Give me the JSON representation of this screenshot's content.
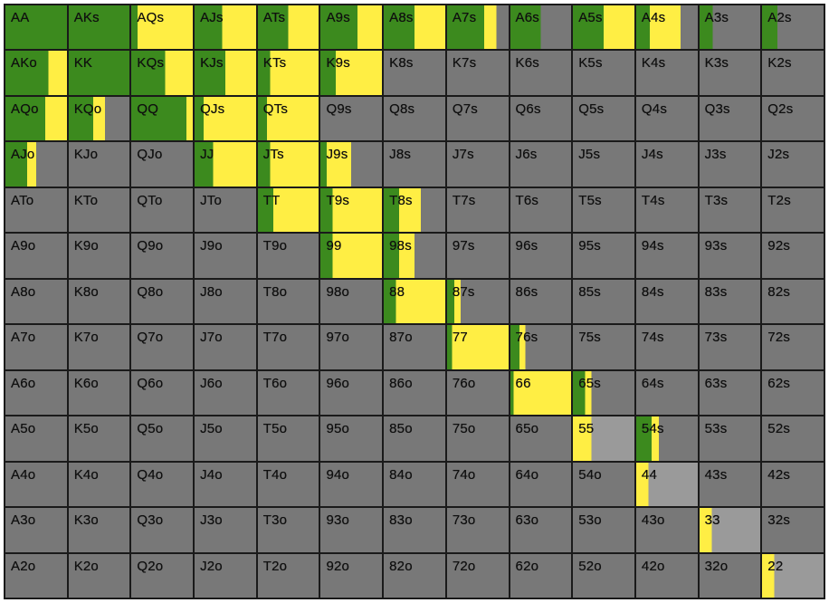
{
  "colors": {
    "green": "#3c8a1e",
    "yellow": "#ffee44",
    "fold": "#787878",
    "fold_light": "#9a9a9a",
    "grid_line": "#1a1a1a"
  },
  "chart_data": {
    "type": "heatmap",
    "ranks": [
      "A",
      "K",
      "Q",
      "J",
      "T",
      "9",
      "8",
      "7",
      "6",
      "5",
      "4",
      "3",
      "2"
    ],
    "value_units": "fraction of cell width",
    "legend": [],
    "rows": [
      {
        "labels": [
          "AA",
          "AKs",
          "AQs",
          "AJs",
          "ATs",
          "A9s",
          "A8s",
          "A7s",
          "A6s",
          "A5s",
          "A4s",
          "A3s",
          "A2s"
        ],
        "green": [
          1.0,
          1.0,
          0.1,
          0.45,
          0.5,
          0.6,
          0.5,
          0.6,
          0.5,
          0.5,
          0.22,
          0.22,
          0.25
        ],
        "yellow": [
          0.0,
          0.0,
          0.9,
          0.55,
          0.5,
          0.4,
          0.5,
          0.2,
          0.0,
          0.5,
          0.5,
          0.0,
          0.0
        ]
      },
      {
        "labels": [
          "AKo",
          "KK",
          "KQs",
          "KJs",
          "KTs",
          "K9s",
          "K8s",
          "K7s",
          "K6s",
          "K5s",
          "K4s",
          "K3s",
          "K2s"
        ],
        "green": [
          0.7,
          1.0,
          0.55,
          0.5,
          0.2,
          0.25,
          0.0,
          0.0,
          0.0,
          0.0,
          0.0,
          0.0,
          0.0
        ],
        "yellow": [
          0.3,
          0.0,
          0.45,
          0.5,
          0.8,
          0.75,
          0.0,
          0.0,
          0.0,
          0.0,
          0.0,
          0.0,
          0.0
        ]
      },
      {
        "labels": [
          "AQo",
          "KQo",
          "QQ",
          "QJs",
          "QTs",
          "Q9s",
          "Q8s",
          "Q7s",
          "Q6s",
          "Q5s",
          "Q4s",
          "Q3s",
          "Q2s"
        ],
        "green": [
          0.65,
          0.4,
          0.9,
          0.15,
          0.15,
          0.0,
          0.0,
          0.0,
          0.0,
          0.0,
          0.0,
          0.0,
          0.0
        ],
        "yellow": [
          0.35,
          0.2,
          0.1,
          0.85,
          0.85,
          0.0,
          0.0,
          0.0,
          0.0,
          0.0,
          0.0,
          0.0,
          0.0
        ]
      },
      {
        "labels": [
          "AJo",
          "KJo",
          "QJo",
          "JJ",
          "JTs",
          "J9s",
          "J8s",
          "J7s",
          "J6s",
          "J5s",
          "J4s",
          "J3s",
          "J2s"
        ],
        "green": [
          0.35,
          0.0,
          0.0,
          0.3,
          0.2,
          0.1,
          0.0,
          0.0,
          0.0,
          0.0,
          0.0,
          0.0,
          0.0
        ],
        "yellow": [
          0.15,
          0.0,
          0.0,
          0.7,
          0.8,
          0.4,
          0.0,
          0.0,
          0.0,
          0.0,
          0.0,
          0.0,
          0.0
        ]
      },
      {
        "labels": [
          "ATo",
          "KTo",
          "QTo",
          "JTo",
          "TT",
          "T9s",
          "T8s",
          "T7s",
          "T6s",
          "T5s",
          "T4s",
          "T3s",
          "T2s"
        ],
        "green": [
          0.0,
          0.0,
          0.0,
          0.0,
          0.25,
          0.2,
          0.25,
          0.0,
          0.0,
          0.0,
          0.0,
          0.0,
          0.0
        ],
        "yellow": [
          0.0,
          0.0,
          0.0,
          0.0,
          0.75,
          0.8,
          0.35,
          0.0,
          0.0,
          0.0,
          0.0,
          0.0,
          0.0
        ]
      },
      {
        "labels": [
          "A9o",
          "K9o",
          "Q9o",
          "J9o",
          "T9o",
          "99",
          "98s",
          "97s",
          "96s",
          "95s",
          "94s",
          "93s",
          "92s"
        ],
        "green": [
          0.0,
          0.0,
          0.0,
          0.0,
          0.0,
          0.2,
          0.25,
          0.0,
          0.0,
          0.0,
          0.0,
          0.0,
          0.0
        ],
        "yellow": [
          0.0,
          0.0,
          0.0,
          0.0,
          0.0,
          0.8,
          0.25,
          0.0,
          0.0,
          0.0,
          0.0,
          0.0,
          0.0
        ]
      },
      {
        "labels": [
          "A8o",
          "K8o",
          "Q8o",
          "J8o",
          "T8o",
          "98o",
          "88",
          "87s",
          "86s",
          "85s",
          "84s",
          "83s",
          "82s"
        ],
        "green": [
          0.0,
          0.0,
          0.0,
          0.0,
          0.0,
          0.0,
          0.2,
          0.12,
          0.0,
          0.0,
          0.0,
          0.0,
          0.0
        ],
        "yellow": [
          0.0,
          0.0,
          0.0,
          0.0,
          0.0,
          0.0,
          0.8,
          0.1,
          0.0,
          0.0,
          0.0,
          0.0,
          0.0
        ]
      },
      {
        "labels": [
          "A7o",
          "K7o",
          "Q7o",
          "J7o",
          "T7o",
          "97o",
          "87o",
          "77",
          "76s",
          "75s",
          "74s",
          "73s",
          "72s"
        ],
        "green": [
          0.0,
          0.0,
          0.0,
          0.0,
          0.0,
          0.0,
          0.0,
          0.08,
          0.15,
          0.0,
          0.0,
          0.0,
          0.0
        ],
        "yellow": [
          0.0,
          0.0,
          0.0,
          0.0,
          0.0,
          0.0,
          0.0,
          0.92,
          0.1,
          0.0,
          0.0,
          0.0,
          0.0
        ]
      },
      {
        "labels": [
          "A6o",
          "K6o",
          "Q6o",
          "J6o",
          "T6o",
          "96o",
          "86o",
          "76o",
          "66",
          "65s",
          "64s",
          "63s",
          "62s"
        ],
        "green": [
          0.0,
          0.0,
          0.0,
          0.0,
          0.0,
          0.0,
          0.0,
          0.0,
          0.05,
          0.2,
          0.0,
          0.0,
          0.0
        ],
        "yellow": [
          0.0,
          0.0,
          0.0,
          0.0,
          0.0,
          0.0,
          0.0,
          0.0,
          0.95,
          0.1,
          0.0,
          0.0,
          0.0
        ]
      },
      {
        "labels": [
          "A5o",
          "K5o",
          "Q5o",
          "J5o",
          "T5o",
          "95o",
          "85o",
          "75o",
          "65o",
          "55",
          "54s",
          "53s",
          "52s"
        ],
        "green": [
          0.0,
          0.0,
          0.0,
          0.0,
          0.0,
          0.0,
          0.0,
          0.0,
          0.0,
          0.0,
          0.25,
          0.0,
          0.0
        ],
        "yellow": [
          0.0,
          0.0,
          0.0,
          0.0,
          0.0,
          0.0,
          0.0,
          0.0,
          0.0,
          0.3,
          0.12,
          0.0,
          0.0
        ],
        "light": [
          9
        ]
      },
      {
        "labels": [
          "A4o",
          "K4o",
          "Q4o",
          "J4o",
          "T4o",
          "94o",
          "84o",
          "74o",
          "64o",
          "54o",
          "44",
          "43s",
          "42s"
        ],
        "green": [
          0.0,
          0.0,
          0.0,
          0.0,
          0.0,
          0.0,
          0.0,
          0.0,
          0.0,
          0.0,
          0.0,
          0.0,
          0.0
        ],
        "yellow": [
          0.0,
          0.0,
          0.0,
          0.0,
          0.0,
          0.0,
          0.0,
          0.0,
          0.0,
          0.0,
          0.2,
          0.0,
          0.0
        ],
        "light": [
          10
        ]
      },
      {
        "labels": [
          "A3o",
          "K3o",
          "Q3o",
          "J3o",
          "T3o",
          "93o",
          "83o",
          "73o",
          "63o",
          "53o",
          "43o",
          "33",
          "32s"
        ],
        "green": [
          0.0,
          0.0,
          0.0,
          0.0,
          0.0,
          0.0,
          0.0,
          0.0,
          0.0,
          0.0,
          0.0,
          0.0,
          0.0
        ],
        "yellow": [
          0.0,
          0.0,
          0.0,
          0.0,
          0.0,
          0.0,
          0.0,
          0.0,
          0.0,
          0.0,
          0.0,
          0.2,
          0.0
        ],
        "light": [
          11
        ]
      },
      {
        "labels": [
          "A2o",
          "K2o",
          "Q2o",
          "J2o",
          "T2o",
          "92o",
          "82o",
          "72o",
          "62o",
          "52o",
          "42o",
          "32o",
          "22"
        ],
        "green": [
          0.0,
          0.0,
          0.0,
          0.0,
          0.0,
          0.0,
          0.0,
          0.0,
          0.0,
          0.0,
          0.0,
          0.0,
          0.0
        ],
        "yellow": [
          0.0,
          0.0,
          0.0,
          0.0,
          0.0,
          0.0,
          0.0,
          0.0,
          0.0,
          0.0,
          0.0,
          0.0,
          0.2
        ],
        "light": [
          12
        ]
      }
    ]
  }
}
